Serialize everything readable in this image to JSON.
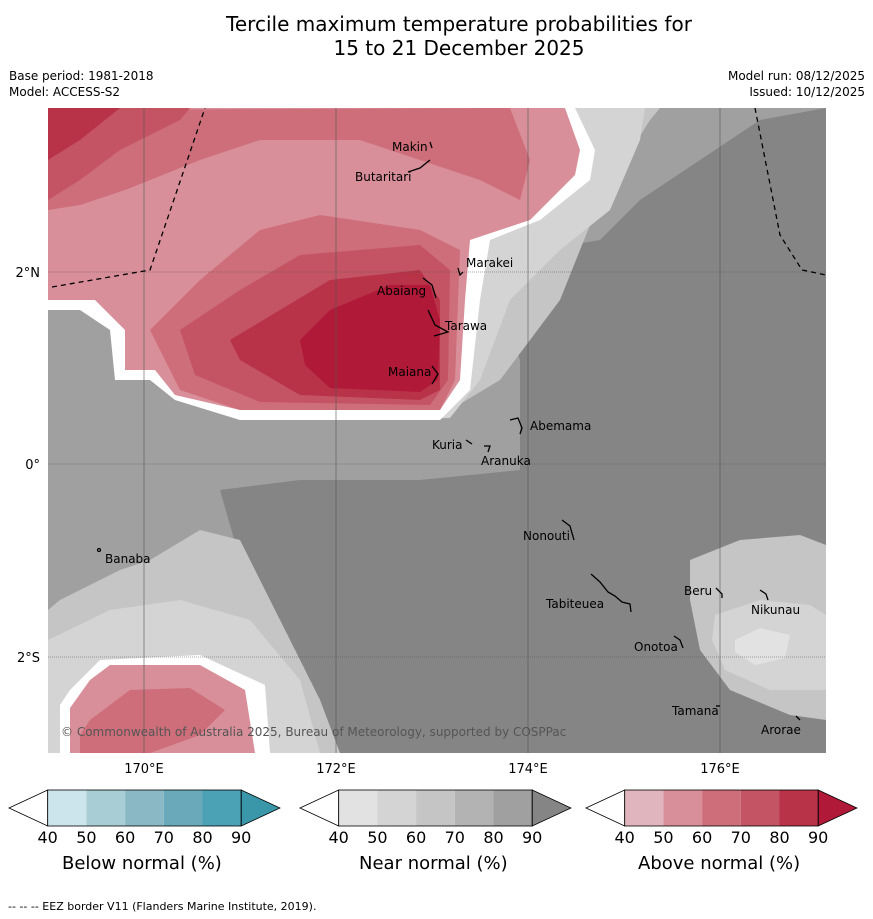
{
  "title_line1": "Tercile maximum temperature probabilities for",
  "title_line2": "15 to 21 December 2025",
  "base_period": "Base period: 1981-2018",
  "model": "Model: ACCESS-S2",
  "model_run": "Model run: 08/12/2025",
  "issued": "Issued: 10/12/2025",
  "lat_labels": [
    "2°N",
    "0°",
    "2°S"
  ],
  "lon_labels": [
    "170°E",
    "172°E",
    "174°E",
    "176°E"
  ],
  "places": [
    {
      "name": "Makin"
    },
    {
      "name": "Butaritari"
    },
    {
      "name": "Marakei"
    },
    {
      "name": "Abaiang"
    },
    {
      "name": "Tarawa"
    },
    {
      "name": "Maiana"
    },
    {
      "name": "Abemama"
    },
    {
      "name": "Kuria"
    },
    {
      "name": "Aranuka"
    },
    {
      "name": "Nonouti"
    },
    {
      "name": "Banaba"
    },
    {
      "name": "Beru"
    },
    {
      "name": "Nikunau"
    },
    {
      "name": "Tabiteuea"
    },
    {
      "name": "Onotoa"
    },
    {
      "name": "Tamana"
    },
    {
      "name": "Arorae"
    }
  ],
  "copyright": "© Commonwealth of Australia 2025, Bureau of Meteorology, supported by COSPPac",
  "colorbars": [
    {
      "label": "Below normal (%)",
      "ticks": [
        "40",
        "50",
        "60",
        "70",
        "80",
        "90"
      ],
      "colors": [
        "#ffffff",
        "#cce4ec",
        "#a9cdd5",
        "#8ab9c5",
        "#6aa9b9",
        "#4aa2b4",
        "#3a97aa"
      ]
    },
    {
      "label": "Near normal (%)",
      "ticks": [
        "40",
        "50",
        "60",
        "70",
        "80",
        "90"
      ],
      "colors": [
        "#ffffff",
        "#e2e2e2",
        "#d4d4d4",
        "#c5c5c5",
        "#b3b3b3",
        "#a0a0a0",
        "#858585"
      ]
    },
    {
      "label": "Above normal (%)",
      "ticks": [
        "40",
        "50",
        "60",
        "70",
        "80",
        "90"
      ],
      "colors": [
        "#ffffff",
        "#e1b5bd",
        "#d88f99",
        "#cd6e7a",
        "#c45464",
        "#b83248",
        "#b01a38"
      ]
    }
  ],
  "footer": "--  --  -- EEZ border V11 (Flanders Marine Institute, 2019)."
}
